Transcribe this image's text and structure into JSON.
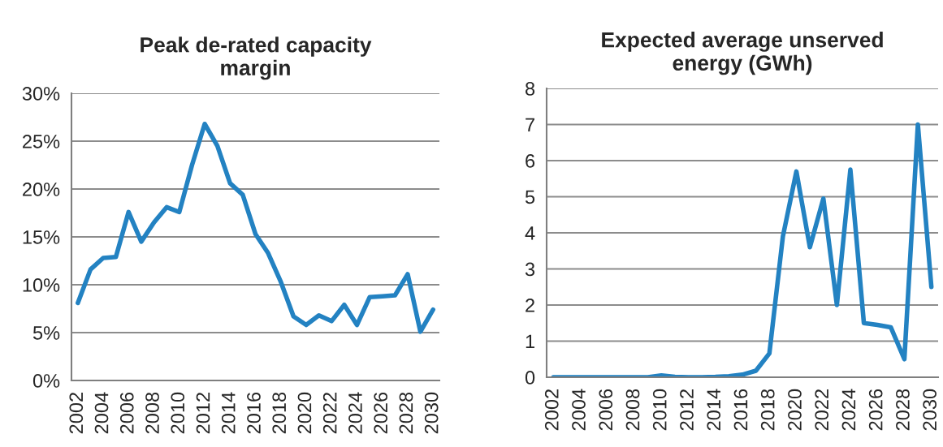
{
  "chart_data": [
    {
      "type": "line",
      "title": "Peak de-rated capacity\nmargin",
      "categories": [
        "2002",
        null,
        "2004",
        null,
        "2006",
        null,
        "2008",
        null,
        "2010",
        null,
        "2012",
        null,
        "2014",
        null,
        "2016",
        null,
        "2018",
        null,
        "2020",
        null,
        "2022",
        null,
        "2024",
        null,
        "2026",
        null,
        "2028",
        null,
        "2030"
      ],
      "series": [
        {
          "color": "#2382c2",
          "values": [
            8.1,
            11.6,
            12.8,
            12.9,
            17.6,
            14.5,
            16.5,
            18.1,
            17.6,
            22.5,
            26.8,
            24.5,
            20.6,
            19.4,
            15.3,
            13.3,
            10.3,
            6.7,
            5.8,
            6.8,
            6.2,
            7.9,
            5.8,
            8.7,
            8.8,
            8.9,
            11.1,
            5.1,
            7.4
          ]
        }
      ],
      "ylim": [
        0,
        30
      ],
      "yticks": [
        {
          "value": 0,
          "label": "0%"
        },
        {
          "value": 5,
          "label": "5%"
        },
        {
          "value": 10,
          "label": "10%"
        },
        {
          "value": 15,
          "label": "15%"
        },
        {
          "value": 20,
          "label": "20%"
        },
        {
          "value": 25,
          "label": "25%"
        },
        {
          "value": 30,
          "label": "30%"
        }
      ],
      "grid": "y",
      "marker": "none",
      "line_style": "solid"
    },
    {
      "type": "line",
      "title": "Expected average unserved\nenergy (GWh)",
      "categories": [
        "2002",
        null,
        "2004",
        null,
        "2006",
        null,
        "2008",
        null,
        "2010",
        null,
        "2012",
        null,
        "2014",
        null,
        "2016",
        null,
        "2018",
        null,
        "2020",
        null,
        "2022",
        null,
        "2024",
        null,
        "2026",
        null,
        "2028",
        null,
        "2030"
      ],
      "series": [
        {
          "color": "#2382c2",
          "values": [
            0,
            0,
            0,
            0,
            0,
            0,
            0,
            0,
            0.05,
            0.01,
            0,
            0,
            0.01,
            0.03,
            0.07,
            0.18,
            0.66,
            3.9,
            5.7,
            3.6,
            4.95,
            2.0,
            5.75,
            1.5,
            1.45,
            1.38,
            0.5,
            7.0,
            2.5
          ]
        }
      ],
      "ylim": [
        0,
        8
      ],
      "yticks": [
        0,
        1,
        2,
        3,
        4,
        5,
        6,
        7,
        8
      ],
      "grid": "y",
      "marker": "none",
      "line_style": "solid"
    }
  ]
}
